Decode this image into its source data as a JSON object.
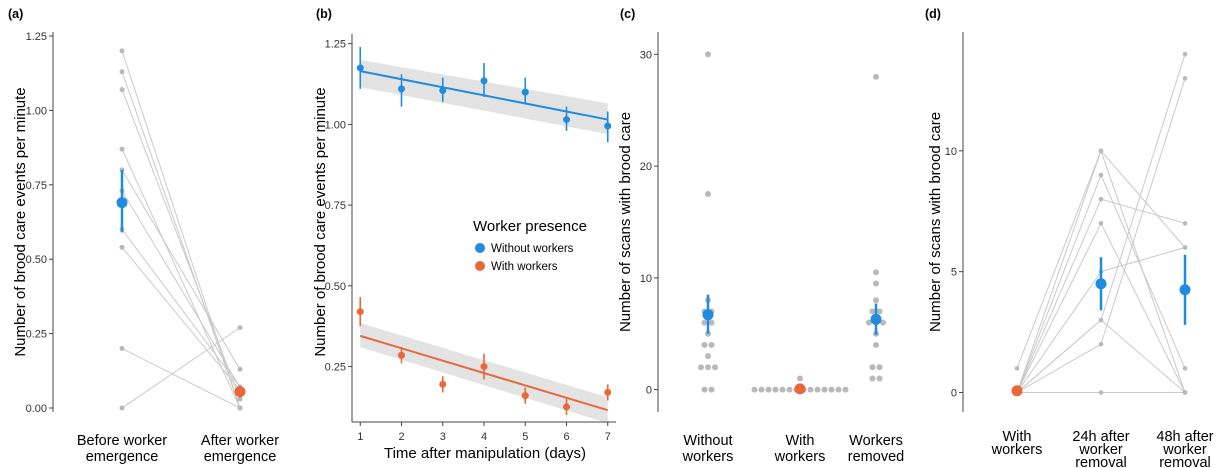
{
  "colors": {
    "blue": "#1f8ce0",
    "orange": "#e8683a",
    "gray": "#b9b9b9",
    "band": "#e3e3e3",
    "line": "#c9c9c9"
  },
  "chart_data": [
    {
      "panel": "(a)",
      "type": "scatter",
      "ylabel": "Number of brood care events per minute",
      "categories": [
        "Before worker\nemergence",
        "After worker\nemergence"
      ],
      "ylim": [
        0,
        1.25
      ],
      "yticks": [
        0.0,
        0.25,
        0.5,
        0.75,
        1.0,
        1.25
      ],
      "yticklabels": [
        "0.00",
        "0.25",
        "0.50",
        "0.75",
        "1.00",
        "1.25"
      ],
      "paired": [
        [
          1.2,
          0.0
        ],
        [
          1.13,
          0.0
        ],
        [
          1.07,
          0.03
        ],
        [
          0.87,
          0.0
        ],
        [
          0.8,
          0.13
        ],
        [
          0.73,
          0.07
        ],
        [
          0.6,
          0.07
        ],
        [
          0.54,
          0.06
        ],
        [
          0.2,
          0.0
        ],
        [
          0.0,
          0.27
        ]
      ],
      "means": [
        {
          "category": 0,
          "mean": 0.69,
          "lo": 0.59,
          "hi": 0.8,
          "color": "blue"
        },
        {
          "category": 1,
          "mean": 0.055,
          "lo": 0.035,
          "hi": 0.075,
          "color": "orange"
        }
      ]
    },
    {
      "panel": "(b)",
      "type": "line",
      "xlabel": "Time after manipulation (days)",
      "ylabel": "Number of brood care events per minute",
      "xlim": [
        0.8,
        7.2
      ],
      "ylim": [
        0.1,
        1.28
      ],
      "xticks": [
        1,
        2,
        3,
        4,
        5,
        6,
        7
      ],
      "xticklabels": [
        "1",
        "2",
        "3",
        "4",
        "5",
        "6",
        "7"
      ],
      "yticks": [
        0.25,
        0.5,
        0.75,
        1.0,
        1.25
      ],
      "yticklabels": [
        "0.25",
        "0.50",
        "0.75",
        "1.00",
        "1.25"
      ],
      "legend": {
        "title": "Worker presence",
        "placement": "center-right"
      },
      "series": [
        {
          "name": "Without workers",
          "color": "blue",
          "x": [
            1,
            2,
            3,
            4,
            5,
            6,
            7
          ],
          "y": [
            1.175,
            1.11,
            1.105,
            1.135,
            1.1,
            1.015,
            0.995
          ],
          "lo": [
            1.11,
            1.055,
            1.07,
            1.085,
            1.065,
            0.98,
            0.945
          ],
          "hi": [
            1.24,
            1.155,
            1.145,
            1.19,
            1.145,
            1.055,
            1.04
          ],
          "fit": [
            1.165,
            1.015
          ],
          "band_lo": [
            1.115,
            0.97
          ],
          "band_hi": [
            1.2,
            1.065
          ]
        },
        {
          "name": "With workers",
          "color": "orange",
          "x": [
            1,
            2,
            3,
            4,
            5,
            6,
            7
          ],
          "y": [
            0.42,
            0.285,
            0.195,
            0.25,
            0.16,
            0.125,
            0.17
          ],
          "lo": [
            0.375,
            0.26,
            0.17,
            0.21,
            0.135,
            0.1,
            0.145
          ],
          "hi": [
            0.465,
            0.31,
            0.22,
            0.29,
            0.185,
            0.15,
            0.195
          ],
          "fit": [
            0.345,
            0.115
          ],
          "band_lo": [
            0.31,
            0.075
          ],
          "band_hi": [
            0.385,
            0.155
          ]
        }
      ]
    },
    {
      "panel": "(c)",
      "type": "scatter",
      "ylabel": "Number of scans with brood care",
      "categories": [
        "Without\nworkers",
        "With\nworkers",
        "Workers\nremoved"
      ],
      "ylim": [
        -2,
        32
      ],
      "yticks": [
        0,
        10,
        20,
        30
      ],
      "yticklabels": [
        "0",
        "10",
        "20",
        "30"
      ],
      "points": [
        {
          "category": 0,
          "values": [
            30,
            17.5,
            8,
            7,
            7,
            6,
            6,
            5,
            4,
            4,
            3,
            2,
            2,
            2,
            0,
            0
          ]
        },
        {
          "category": 1,
          "values": [
            1,
            0,
            0,
            0,
            0,
            0,
            0,
            0,
            0,
            0,
            0,
            0,
            0,
            0,
            0
          ]
        },
        {
          "category": 2,
          "values": [
            28,
            10.5,
            9.5,
            8,
            7,
            7,
            6,
            6,
            6,
            5,
            4,
            2,
            2,
            1,
            1
          ]
        }
      ],
      "means": [
        {
          "category": 0,
          "mean": 6.7,
          "lo": 5.0,
          "hi": 8.5,
          "color": "blue"
        },
        {
          "category": 1,
          "mean": 0.07,
          "lo": 0.0,
          "hi": 0.2,
          "color": "orange"
        },
        {
          "category": 2,
          "mean": 6.3,
          "lo": 4.9,
          "hi": 7.7,
          "color": "blue"
        }
      ]
    },
    {
      "panel": "(d)",
      "type": "scatter",
      "ylabel": "Number of scans with brood care",
      "categories": [
        "With\nworkers",
        "24h after\nworker\nremoval",
        "48h after\nworker\nremoval"
      ],
      "ylim": [
        -0.6,
        15
      ],
      "yticks": [
        0,
        5,
        10
      ],
      "yticklabels": [
        "0",
        "5",
        "10"
      ],
      "lines": [
        [
          0,
          10,
          6
        ],
        [
          0,
          9,
          1
        ],
        [
          0,
          8,
          7
        ],
        [
          0,
          3,
          14
        ],
        [
          0,
          2,
          13
        ],
        [
          0,
          0,
          0
        ],
        [
          1,
          10,
          0
        ],
        [
          0,
          5,
          6
        ],
        [
          0,
          3,
          0
        ],
        [
          0,
          7,
          0
        ]
      ],
      "means": [
        {
          "category": 0,
          "mean": 0.07,
          "lo": 0.0,
          "hi": 0.15,
          "color": "orange"
        },
        {
          "category": 1,
          "mean": 4.5,
          "lo": 3.4,
          "hi": 5.6,
          "color": "blue"
        },
        {
          "category": 2,
          "mean": 4.25,
          "lo": 2.8,
          "hi": 5.7,
          "color": "blue"
        }
      ]
    }
  ]
}
